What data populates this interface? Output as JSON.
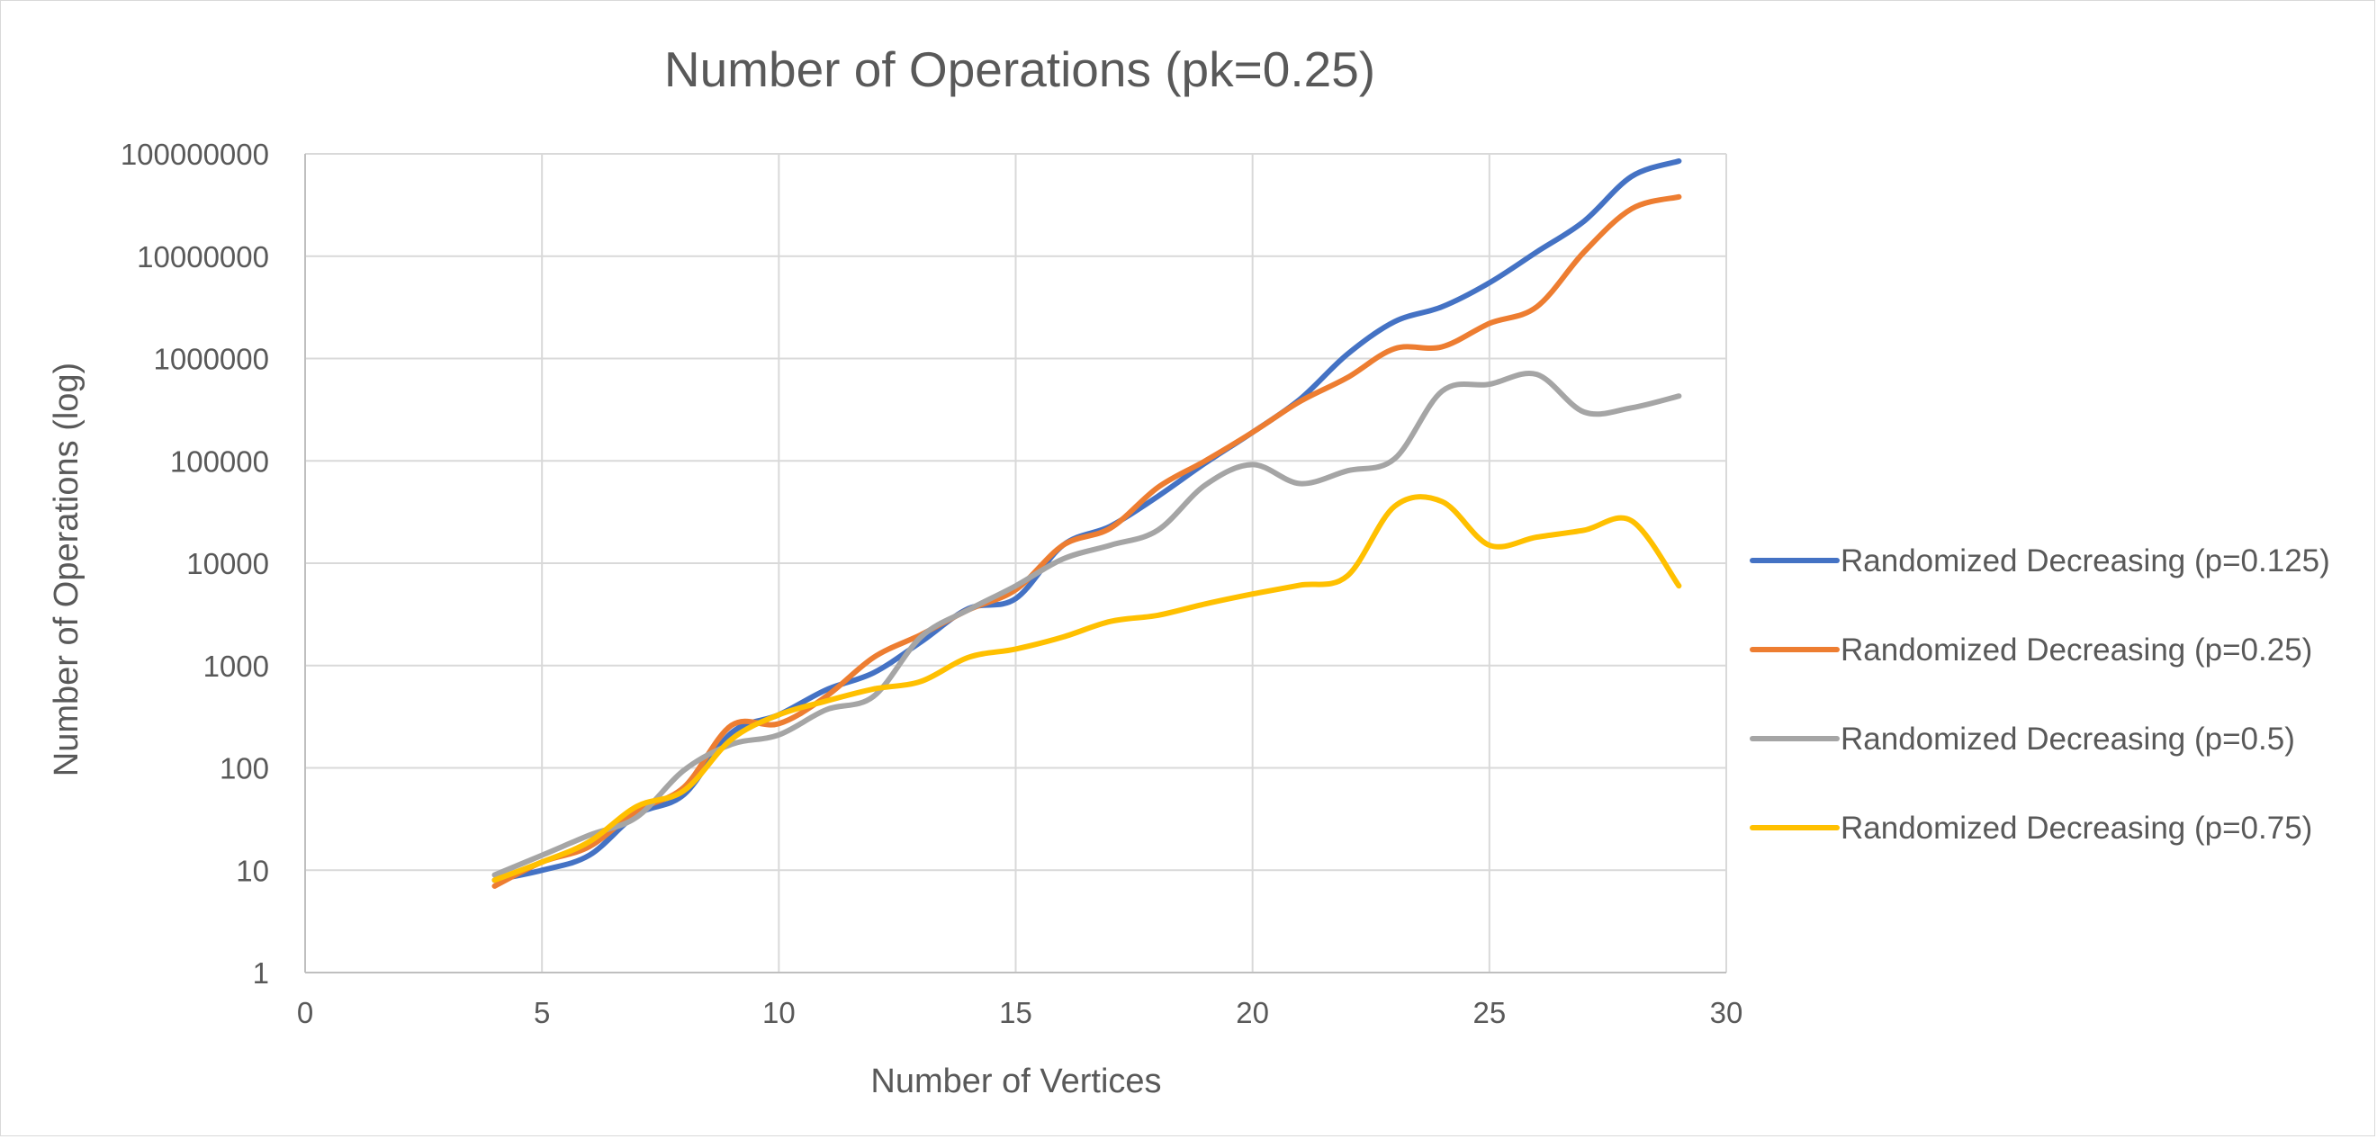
{
  "chart_data": {
    "type": "line",
    "title": "Number of Operations (pk=0.25)",
    "xlabel": "Number of Vertices",
    "ylabel": "Number of Operations (log)",
    "xlim": [
      0,
      30
    ],
    "xticks": [
      0,
      5,
      10,
      15,
      20,
      25,
      30
    ],
    "ylim": [
      1,
      100000000
    ],
    "yscale": "log",
    "yticks": [
      "1",
      "10",
      "100",
      "1000",
      "10000",
      "100000",
      "1000000",
      "10000000",
      "100000000"
    ],
    "grid": true,
    "legend_position": "right",
    "x": [
      4,
      5,
      6,
      7,
      8,
      9,
      10,
      11,
      12,
      13,
      14,
      15,
      16,
      17,
      18,
      19,
      20,
      21,
      22,
      23,
      24,
      25,
      26,
      27,
      28,
      29
    ],
    "series": [
      {
        "name": "Randomized Decreasing (p=0.125)",
        "color": "#4472C4",
        "values": [
          8,
          10,
          14,
          35,
          55,
          220,
          330,
          580,
          850,
          1700,
          3600,
          4500,
          15000,
          23000,
          45000,
          95000,
          190000,
          400000,
          1100000,
          2300000,
          3200000,
          5500000,
          11000000,
          22000000,
          60000000,
          85000000
        ]
      },
      {
        "name": "Randomized Decreasing (p=0.25)",
        "color": "#ED7D31",
        "values": [
          7,
          12,
          17,
          38,
          65,
          260,
          270,
          500,
          1200,
          2000,
          3500,
          5500,
          15000,
          22000,
          55000,
          100000,
          190000,
          380000,
          650000,
          1250000,
          1300000,
          2200000,
          3200000,
          11000000,
          29000000,
          38000000
        ]
      },
      {
        "name": "Randomized Decreasing (p=0.5)",
        "color": "#A5A5A5",
        "values": [
          9,
          14,
          22,
          33,
          95,
          170,
          210,
          370,
          500,
          1900,
          3500,
          6000,
          11000,
          15000,
          21000,
          58000,
          92000,
          60000,
          80000,
          105000,
          480000,
          560000,
          700000,
          300000,
          330000,
          430000
        ]
      },
      {
        "name": "Randomized Decreasing (p=0.75)",
        "color": "#FFC000",
        "values": [
          8,
          12,
          19,
          42,
          60,
          190,
          330,
          450,
          590,
          700,
          1200,
          1450,
          1900,
          2700,
          3100,
          4000,
          5000,
          6100,
          7500,
          36000,
          40000,
          15000,
          18000,
          21000,
          26000,
          6000
        ]
      }
    ]
  }
}
